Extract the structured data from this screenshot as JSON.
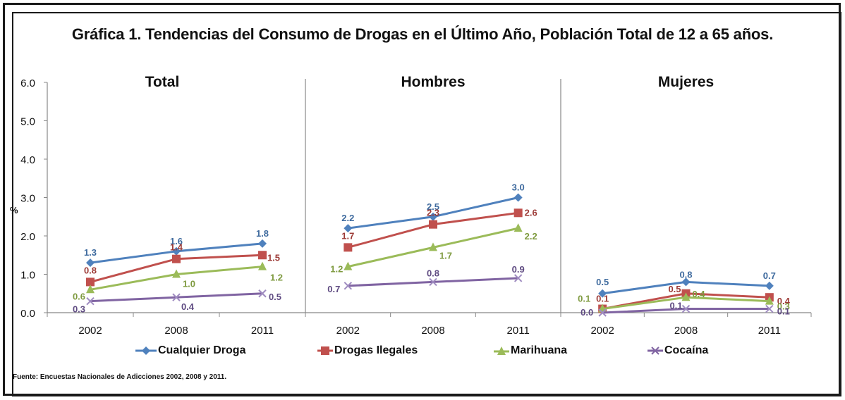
{
  "chart_data": {
    "type": "line",
    "title": "Gráfica 1. Tendencias del Consumo de Drogas en el Último Año, Población Total de 12 a 65 años.",
    "ylabel": "%",
    "ylim": [
      0,
      6
    ],
    "yticks": [
      "0.0",
      "1.0",
      "2.0",
      "3.0",
      "4.0",
      "5.0",
      "6.0"
    ],
    "ytick_values": [
      0,
      1,
      2,
      3,
      4,
      5,
      6
    ],
    "grid": false,
    "legend_position": "bottom",
    "categories": [
      "2002",
      "2008",
      "2011"
    ],
    "legend": [
      {
        "name": "Cualquier Droga",
        "color": "#4F81BD",
        "marker": "diamond"
      },
      {
        "name": "Drogas Ilegales",
        "color": "#C0504D",
        "marker": "square"
      },
      {
        "name": "Marihuana",
        "color": "#9BBB59",
        "marker": "triangle"
      },
      {
        "name": "Cocaína",
        "color": "#8064A2",
        "marker": "x"
      }
    ],
    "panels": [
      {
        "title": "Total",
        "series": [
          {
            "name": "Cualquier Droga",
            "values": [
              1.3,
              1.6,
              1.8
            ],
            "labels": [
              "1.3",
              "1.6",
              "1.8"
            ]
          },
          {
            "name": "Drogas Ilegales",
            "values": [
              0.8,
              1.4,
              1.5
            ],
            "labels": [
              "0.8",
              "1.4",
              "1.5"
            ]
          },
          {
            "name": "Marihuana",
            "values": [
              0.6,
              1.0,
              1.2
            ],
            "labels": [
              "0.6",
              "1.0",
              "1.2"
            ]
          },
          {
            "name": "Cocaína",
            "values": [
              0.3,
              0.4,
              0.5
            ],
            "labels": [
              "0.3",
              "0.4",
              "0.5"
            ]
          }
        ]
      },
      {
        "title": "Hombres",
        "series": [
          {
            "name": "Cualquier Droga",
            "values": [
              2.2,
              2.5,
              3.0
            ],
            "labels": [
              "2.2",
              "2.5",
              "3.0"
            ]
          },
          {
            "name": "Drogas Ilegales",
            "values": [
              1.7,
              2.3,
              2.6
            ],
            "labels": [
              "1.7",
              "2.3",
              "2.6"
            ]
          },
          {
            "name": "Marihuana",
            "values": [
              1.2,
              1.7,
              2.2
            ],
            "labels": [
              "1.2",
              "1.7",
              "2.2"
            ]
          },
          {
            "name": "Cocaína",
            "values": [
              0.7,
              0.8,
              0.9
            ],
            "labels": [
              "0.7",
              "0.8",
              "0.9"
            ]
          }
        ]
      },
      {
        "title": "Mujeres",
        "series": [
          {
            "name": "Cualquier Droga",
            "values": [
              0.5,
              0.8,
              0.7
            ],
            "labels": [
              "0.5",
              "0.8",
              "0.7"
            ]
          },
          {
            "name": "Drogas Ilegales",
            "values": [
              0.1,
              0.5,
              0.4
            ],
            "labels": [
              "0.1",
              "0.5",
              "0.4"
            ]
          },
          {
            "name": "Marihuana",
            "values": [
              0.1,
              0.4,
              0.3
            ],
            "labels": [
              "0.1",
              "0.4",
              "0.3"
            ]
          },
          {
            "name": "Cocaína",
            "values": [
              0.0,
              0.1,
              0.1
            ],
            "labels": [
              "0.0",
              "0.1",
              "0.1"
            ]
          }
        ]
      }
    ]
  },
  "source_note": "Fuente: Encuestas Nacionales de Adicciones  2002, 2008 y 2011."
}
